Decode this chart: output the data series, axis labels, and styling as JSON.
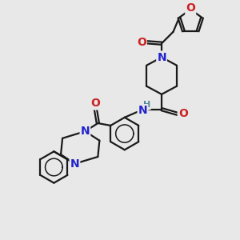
{
  "bg_color": "#e8e8e8",
  "bond_color": "#1a1a1a",
  "N_color": "#2222cc",
  "O_color": "#cc2222",
  "H_color": "#558899",
  "line_width": 1.6,
  "font_size": 10,
  "fig_size": [
    3.0,
    3.0
  ],
  "dpi": 100,
  "xlim": [
    0,
    10
  ],
  "ylim": [
    0,
    10
  ]
}
